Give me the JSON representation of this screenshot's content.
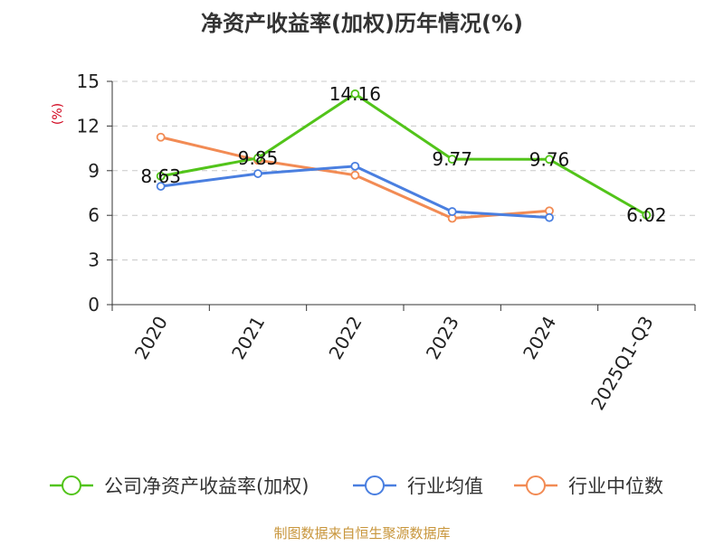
{
  "chart_data": {
    "type": "line",
    "title": "净资产收益率(加权)历年情况(%)",
    "ylabel": "(%)",
    "categories": [
      "2020",
      "2021",
      "2022",
      "2023",
      "2024",
      "2025Q1-Q3"
    ],
    "ylim": [
      0,
      15
    ],
    "yticks": [
      0,
      3,
      6,
      9,
      12,
      15
    ],
    "grid": true,
    "legend_position": "bottom",
    "series": [
      {
        "name": "公司净资产收益率(加权)",
        "color": "#52c41a",
        "values": [
          8.63,
          9.85,
          14.16,
          9.77,
          9.76,
          6.02
        ],
        "show_labels": true
      },
      {
        "name": "行业均值",
        "color": "#4a7fe0",
        "values": [
          7.95,
          8.8,
          9.3,
          6.25,
          5.85,
          null
        ],
        "show_labels": false
      },
      {
        "name": "行业中位数",
        "color": "#f28b54",
        "values": [
          11.25,
          9.7,
          8.7,
          5.8,
          6.3,
          null
        ],
        "show_labels": false
      }
    ],
    "data_labels": [
      "8.63",
      "9.85",
      "14.16",
      "9.77",
      "9.76",
      "6.02"
    ],
    "source": "制图数据来自恒生聚源数据库"
  }
}
